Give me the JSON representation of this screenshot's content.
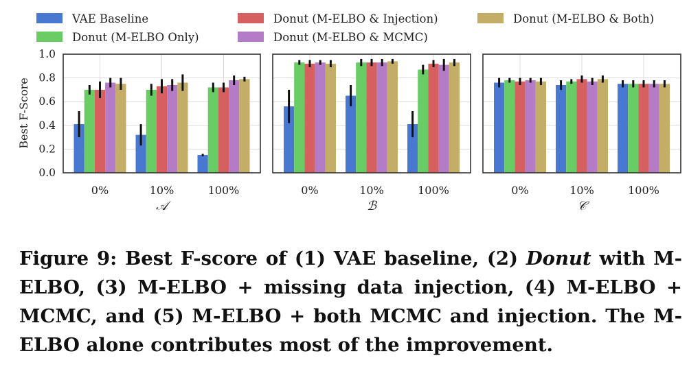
{
  "chart_data": {
    "type": "bar",
    "ylabel": "Best F-Score",
    "ylim": [
      0,
      1.0
    ],
    "yticks": [
      "0.0",
      "0.2",
      "0.4",
      "0.6",
      "0.8",
      "1.0"
    ],
    "grid": true,
    "legend_position": "top",
    "series_names": [
      "VAE Baseline",
      "Donut (M-ELBO Only)",
      "Donut (M-ELBO & Injection)",
      "Donut (M-ELBO & MCMC)",
      "Donut (M-ELBO & Both)"
    ],
    "colors": [
      "#4878cf",
      "#6acc65",
      "#d65f5f",
      "#b47cc7",
      "#c4ad66"
    ],
    "panels": [
      {
        "xlabel": "𝒜",
        "categories": [
          "0%",
          "10%",
          "100%"
        ],
        "values": [
          [
            0.41,
            0.7,
            0.7,
            0.76,
            0.75
          ],
          [
            0.32,
            0.7,
            0.73,
            0.74,
            0.76
          ],
          [
            0.15,
            0.72,
            0.72,
            0.78,
            0.79
          ]
        ],
        "errors": [
          [
            0.11,
            0.04,
            0.07,
            0.04,
            0.05
          ],
          [
            0.09,
            0.05,
            0.06,
            0.05,
            0.07
          ],
          [
            0.01,
            0.04,
            0.04,
            0.04,
            0.02
          ]
        ]
      },
      {
        "xlabel": "ℬ",
        "categories": [
          "0%",
          "10%",
          "100%"
        ],
        "values": [
          [
            0.56,
            0.93,
            0.92,
            0.93,
            0.92
          ],
          [
            0.65,
            0.93,
            0.93,
            0.93,
            0.94
          ],
          [
            0.41,
            0.87,
            0.92,
            0.91,
            0.93
          ]
        ],
        "errors": [
          [
            0.14,
            0.02,
            0.03,
            0.02,
            0.03
          ],
          [
            0.09,
            0.03,
            0.03,
            0.03,
            0.02
          ],
          [
            0.11,
            0.04,
            0.03,
            0.05,
            0.03
          ]
        ]
      },
      {
        "xlabel": "𝒞",
        "categories": [
          "0%",
          "10%",
          "100%"
        ],
        "values": [
          [
            0.76,
            0.78,
            0.77,
            0.78,
            0.77
          ],
          [
            0.74,
            0.77,
            0.79,
            0.77,
            0.79
          ],
          [
            0.75,
            0.75,
            0.75,
            0.75,
            0.75
          ]
        ],
        "errors": [
          [
            0.04,
            0.02,
            0.03,
            0.02,
            0.03
          ],
          [
            0.04,
            0.02,
            0.03,
            0.03,
            0.03
          ],
          [
            0.03,
            0.03,
            0.03,
            0.03,
            0.03
          ]
        ]
      }
    ]
  },
  "caption": {
    "prefix": "Figure 9: Best F-score of (1) VAE baseline, (2) ",
    "emphasis": "Donut",
    "suffix": " with M-ELBO, (3) M-ELBO + missing data injection, (4) M-ELBO + MCMC, and (5) M-ELBO + both MCMC and injection. The M-ELBO alone contributes most of the improvement."
  }
}
